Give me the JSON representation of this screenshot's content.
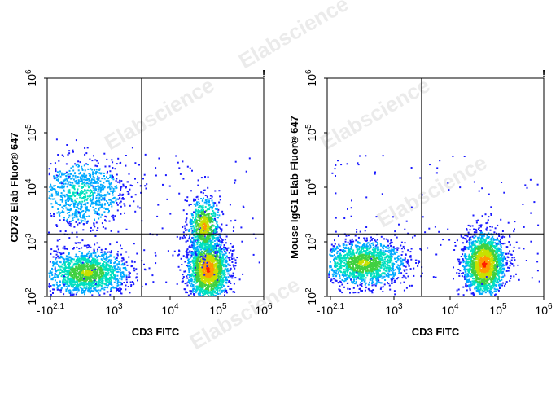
{
  "watermark": "Elabscience",
  "colors": {
    "density": [
      "#1a1aff",
      "#00aaff",
      "#00e0c0",
      "#40d040",
      "#c8e000",
      "#ff9a00",
      "#ff2000"
    ],
    "frame": "#000000",
    "gate": "#000000"
  },
  "chart_data": [
    {
      "type": "scatter",
      "title": "",
      "xlabel": "CD3 FITC",
      "ylabel": "CD73  Elab Fluor® 647",
      "x_scale": "biexponential",
      "y_scale": "log",
      "x_ticks": [
        {
          "base": "-10",
          "exp": "2.1"
        },
        {
          "base": "10",
          "exp": "3"
        },
        {
          "base": "10",
          "exp": "4"
        },
        {
          "base": "10",
          "exp": "5"
        },
        {
          "base": "10",
          "exp": "6"
        }
      ],
      "y_ticks": [
        {
          "base": "10",
          "exp": "2"
        },
        {
          "base": "10",
          "exp": "3"
        },
        {
          "base": "10",
          "exp": "4"
        },
        {
          "base": "10",
          "exp": "5"
        },
        {
          "base": "10",
          "exp": "6"
        }
      ],
      "gate": {
        "x": 3100,
        "y": 1400
      },
      "marker": "!",
      "populations": [
        {
          "name": "CD3- CD73-",
          "x_center": 500,
          "y_center": 280,
          "intensity": "high"
        },
        {
          "name": "CD3- CD73+",
          "x_center": 400,
          "y_center": 8000,
          "intensity": "low"
        },
        {
          "name": "CD3+ CD73-",
          "x_center": 60000,
          "y_center": 320,
          "intensity": "very high"
        },
        {
          "name": "CD3+ CD73+",
          "x_center": 50000,
          "y_center": 2000,
          "intensity": "medium"
        }
      ]
    },
    {
      "type": "scatter",
      "title": "",
      "xlabel": "CD3 FITC",
      "ylabel": "Mouse IgG1 Elab Fluor® 647",
      "x_scale": "biexponential",
      "y_scale": "log",
      "x_ticks": [
        {
          "base": "-10",
          "exp": "2.1"
        },
        {
          "base": "10",
          "exp": "3"
        },
        {
          "base": "10",
          "exp": "4"
        },
        {
          "base": "10",
          "exp": "5"
        },
        {
          "base": "10",
          "exp": "6"
        }
      ],
      "y_ticks": [
        {
          "base": "10",
          "exp": "2"
        },
        {
          "base": "10",
          "exp": "3"
        },
        {
          "base": "10",
          "exp": "4"
        },
        {
          "base": "10",
          "exp": "5"
        },
        {
          "base": "10",
          "exp": "6"
        }
      ],
      "gate": {
        "x": 3100,
        "y": 1400
      },
      "marker": "!",
      "populations": [
        {
          "name": "CD3- IgG1-",
          "x_center": 450,
          "y_center": 420,
          "intensity": "high"
        },
        {
          "name": "CD3+ IgG1-",
          "x_center": 50000,
          "y_center": 400,
          "intensity": "very high"
        }
      ]
    }
  ]
}
